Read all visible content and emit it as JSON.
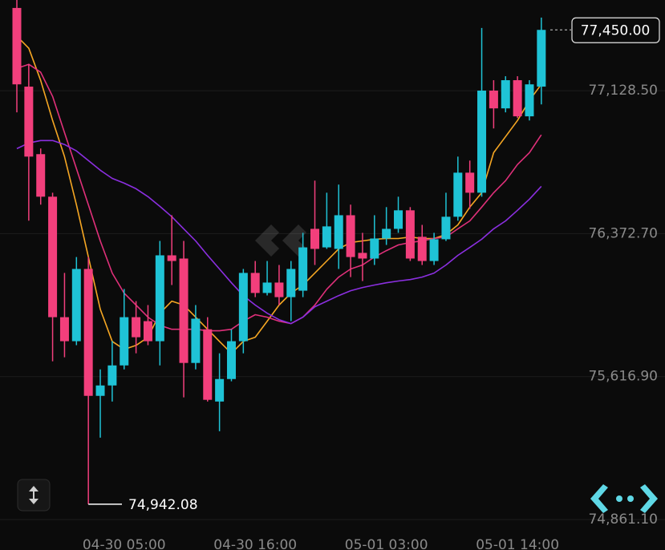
{
  "chart_data": {
    "type": "candlestick",
    "categories": [
      null,
      null,
      null,
      null,
      null,
      null,
      null,
      null,
      null,
      "04-30 05:00",
      null,
      null,
      null,
      null,
      null,
      null,
      null,
      null,
      null,
      null,
      "04-30 16:00",
      null,
      null,
      null,
      null,
      null,
      null,
      null,
      null,
      null,
      null,
      "05-01 03:00",
      null,
      null,
      null,
      null,
      null,
      null,
      null,
      null,
      null,
      null,
      "05-01 14:00",
      null,
      null
    ],
    "open": [
      77566,
      77150,
      76793,
      76568,
      75931,
      75804,
      76186,
      75515,
      75570,
      75676,
      75931,
      75910,
      75804,
      76258,
      76241,
      75689,
      75867,
      75485,
      75604,
      75804,
      76165,
      76059,
      76114,
      76037,
      76071,
      76398,
      76300,
      76292,
      76470,
      76271,
      76241,
      76347,
      76398,
      76496,
      76356,
      76228,
      76343,
      76462,
      76695,
      76589,
      77129,
      77035,
      77184,
      76993,
      77150
    ],
    "high": [
      77608,
      77269,
      76823,
      76589,
      76165,
      76249,
      76249,
      75655,
      75804,
      76080,
      76016,
      75995,
      76334,
      76470,
      76334,
      75995,
      75931,
      75740,
      75867,
      76186,
      76228,
      76228,
      76207,
      76228,
      76377,
      76653,
      76589,
      76632,
      76526,
      76377,
      76470,
      76513,
      76568,
      76513,
      76419,
      76377,
      76589,
      76780,
      76759,
      77460,
      77184,
      77205,
      77205,
      77184,
      77515
    ],
    "low": [
      77014,
      76441,
      76526,
      75698,
      75719,
      75783,
      74942.08,
      75294,
      75485,
      75655,
      75740,
      75783,
      75676,
      76101,
      75507,
      75655,
      75485,
      75328,
      75592,
      75740,
      76037,
      76046,
      75995,
      75910,
      76037,
      76207,
      76292,
      76186,
      76143,
      76122,
      76207,
      76313,
      76377,
      76228,
      76207,
      76207,
      76334,
      76441,
      76504,
      76568,
      76929,
      77014,
      76984,
      76971,
      77056
    ],
    "close": [
      77162,
      76780,
      76568,
      75931,
      75804,
      76186,
      75515,
      75570,
      75676,
      75931,
      75825,
      75804,
      76258,
      76228,
      75689,
      75923,
      75494,
      75604,
      75804,
      76165,
      76059,
      76114,
      76037,
      76186,
      76300,
      76292,
      76411,
      76470,
      76249,
      76241,
      76347,
      76398,
      76496,
      76241,
      76228,
      76343,
      76462,
      76695,
      76589,
      77129,
      77035,
      77184,
      76993,
      77162,
      77450
    ],
    "up_color": "#1fc3d6",
    "down_color": "#f23f7c",
    "lines": [
      {
        "color": "#f5a623",
        "values": [
          77417,
          77353,
          77183,
          76971,
          76780,
          76525,
          76249,
          75973,
          75803,
          75761,
          75782,
          75825,
          75952,
          76016,
          75995,
          75931,
          75867,
          75803,
          75740,
          75803,
          75825,
          75910,
          75995,
          76058,
          76101,
          76164,
          76228,
          76292,
          76326,
          76334,
          76343,
          76347,
          76347,
          76355,
          76347,
          76347,
          76368,
          76419,
          76513,
          76589,
          76801,
          76886,
          76971,
          77077,
          77162
        ]
      },
      {
        "color": "#e0307a",
        "values": [
          77247,
          77268,
          77226,
          77098,
          76907,
          76716,
          76525,
          76334,
          76164,
          76058,
          75995,
          75931,
          75888,
          75867,
          75867,
          75867,
          75859,
          75859,
          75867,
          75910,
          75944,
          75931,
          75910,
          75897,
          75931,
          75995,
          76079,
          76143,
          76186,
          76207,
          76249,
          76283,
          76313,
          76326,
          76334,
          76347,
          76355,
          76398,
          76440,
          76513,
          76589,
          76653,
          76738,
          76801,
          76895
        ]
      },
      {
        "color": "#8b2fe0",
        "values": [
          76822,
          76852,
          76865,
          76865,
          76844,
          76810,
          76759,
          76708,
          76665,
          76640,
          76610,
          76568,
          76517,
          76462,
          76398,
          76334,
          76258,
          76186,
          76113,
          76045,
          75995,
          75952,
          75918,
          75897,
          75931,
          75986,
          76016,
          76045,
          76071,
          76088,
          76101,
          76113,
          76122,
          76130,
          76143,
          76164,
          76207,
          76258,
          76300,
          76343,
          76398,
          76440,
          76496,
          76555,
          76623
        ]
      }
    ],
    "ylim": [
      74700,
      77608
    ],
    "yticks": [
      {
        "value": 77128.5,
        "label": "77,128.50"
      },
      {
        "value": 76372.7,
        "label": "76,372.70"
      },
      {
        "value": 75616.9,
        "label": "75,616.90"
      },
      {
        "value": 74861.1,
        "label": "74,861.10"
      }
    ],
    "grid": true,
    "last_price": {
      "value": 77450,
      "label": "77,450.00"
    },
    "low_marker": {
      "value": 74942.08,
      "label": "74,942.08"
    }
  }
}
